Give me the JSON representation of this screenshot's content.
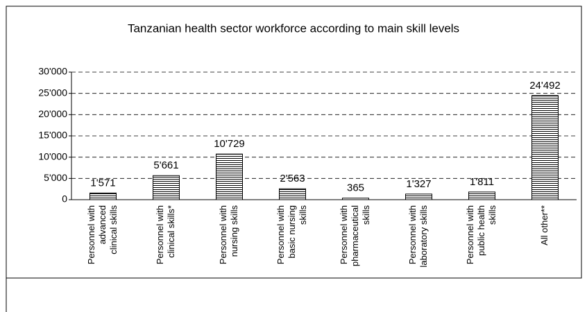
{
  "chart_data": {
    "type": "bar",
    "title": "Tanzanian health sector workforce according to main skill levels",
    "categories": [
      [
        "Personnel with",
        "advanced",
        "clinical skills"
      ],
      [
        "Personnel with",
        "clinical skills*"
      ],
      [
        "Personnel with",
        "nursing skills"
      ],
      [
        "Personnel with",
        "basic nursing",
        "skills"
      ],
      [
        "Personnel with",
        "pharmaceutical",
        "skills"
      ],
      [
        "Personnel with",
        "laboratory skills"
      ],
      [
        "Personnel with",
        "public health",
        "skills"
      ],
      [
        "All other**"
      ]
    ],
    "values": [
      1571,
      5661,
      10729,
      2563,
      365,
      1327,
      1811,
      24492
    ],
    "value_labels": [
      "1'571",
      "5'661",
      "10'729",
      "2'563",
      "365",
      "1'327",
      "1'811",
      "24'492"
    ],
    "color": "#000000",
    "ylim": [
      0,
      30000
    ],
    "yticks": [
      0,
      {
        "value": 5000,
        "label": "5'000"
      },
      {
        "value": 10000,
        "label": "10'000"
      },
      {
        "value": 15000,
        "label": "15'000"
      },
      {
        "value": 20000,
        "label": "20'000"
      },
      {
        "value": 25000,
        "label": "25'000"
      },
      {
        "value": 30000,
        "label": "30'000"
      }
    ],
    "grid": true
  }
}
